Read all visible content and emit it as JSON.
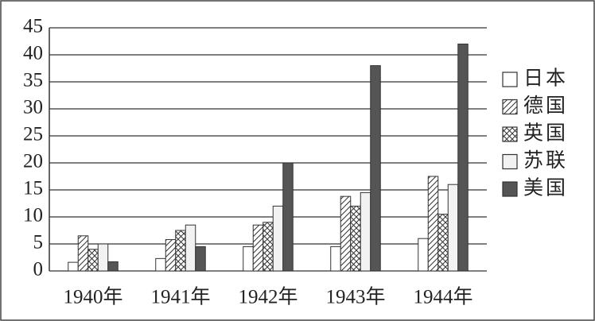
{
  "chart_data": {
    "type": "bar",
    "categories": [
      "1940年",
      "1941年",
      "1942年",
      "1943年",
      "1944年"
    ],
    "series": [
      {
        "name": "日本",
        "color": "#ffffff",
        "pattern": "none",
        "values": [
          1.6,
          2.3,
          4.5,
          4.5,
          6
        ]
      },
      {
        "name": "德国",
        "color": "#ffffff",
        "pattern": "diagonal",
        "values": [
          6.5,
          5.8,
          8.5,
          13.8,
          17.5
        ]
      },
      {
        "name": "英国",
        "color": "#ffffff",
        "pattern": "cross",
        "values": [
          4,
          7.5,
          9,
          12,
          10.5
        ]
      },
      {
        "name": "苏联",
        "color": "#f2f2f2",
        "pattern": "none",
        "values": [
          5,
          8.5,
          12,
          14.5,
          16
        ]
      },
      {
        "name": "美国",
        "color": "#555555",
        "pattern": "none",
        "values": [
          1.7,
          4.5,
          20,
          38,
          42
        ]
      }
    ],
    "ylim": [
      0,
      45
    ],
    "yticks": [
      0,
      5,
      10,
      15,
      20,
      25,
      30,
      35,
      40,
      45
    ],
    "grid": true,
    "legend": "right"
  }
}
